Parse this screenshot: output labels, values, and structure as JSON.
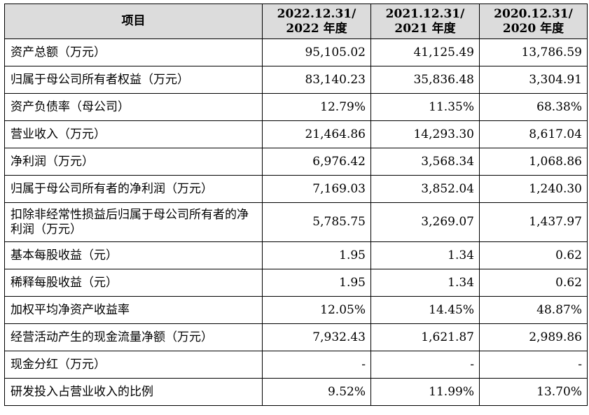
{
  "table": {
    "headers": [
      {
        "line1": "项目",
        "line2": ""
      },
      {
        "line1": "2022.12.31/",
        "line2": "2022 年度"
      },
      {
        "line1": "2021.12.31/",
        "line2": "2021 年度"
      },
      {
        "line1": "2020.12.31/",
        "line2": "2020 年度"
      }
    ],
    "rows": [
      {
        "label": "资产总额（万元）",
        "values": [
          "95,105.02",
          "41,125.49",
          "13,786.59"
        ]
      },
      {
        "label": "归属于母公司所有者权益（万元）",
        "values": [
          "83,140.23",
          "35,836.48",
          "3,304.91"
        ]
      },
      {
        "label": "资产负债率（母公司）",
        "values": [
          "12.79%",
          "11.35%",
          "68.38%"
        ]
      },
      {
        "label": "营业收入（万元）",
        "values": [
          "21,464.86",
          "14,293.30",
          "8,617.04"
        ]
      },
      {
        "label": "净利润（万元）",
        "values": [
          "6,976.42",
          "3,568.34",
          "1,068.86"
        ]
      },
      {
        "label": "归属于母公司所有者的净利润（万元）",
        "values": [
          "7,169.03",
          "3,852.04",
          "1,240.30"
        ]
      },
      {
        "label": "扣除非经常性损益后归属于母公司所有者的净利润（万元）",
        "values": [
          "5,785.75",
          "3,269.07",
          "1,437.97"
        ]
      },
      {
        "label": "基本每股收益（元）",
        "values": [
          "1.95",
          "1.34",
          "0.62"
        ]
      },
      {
        "label": "稀释每股收益（元）",
        "values": [
          "1.95",
          "1.34",
          "0.62"
        ]
      },
      {
        "label": "加权平均净资产收益率",
        "values": [
          "12.05%",
          "14.45%",
          "48.87%"
        ]
      },
      {
        "label": "经营活动产生的现金流量净额（万元）",
        "values": [
          "7,932.43",
          "1,621.87",
          "2,989.86"
        ]
      },
      {
        "label": "现金分红（万元）",
        "values": [
          "-",
          "-",
          "-"
        ]
      },
      {
        "label": "研发投入占营业收入的比例",
        "values": [
          "9.52%",
          "11.99%",
          "13.70%"
        ]
      }
    ]
  }
}
